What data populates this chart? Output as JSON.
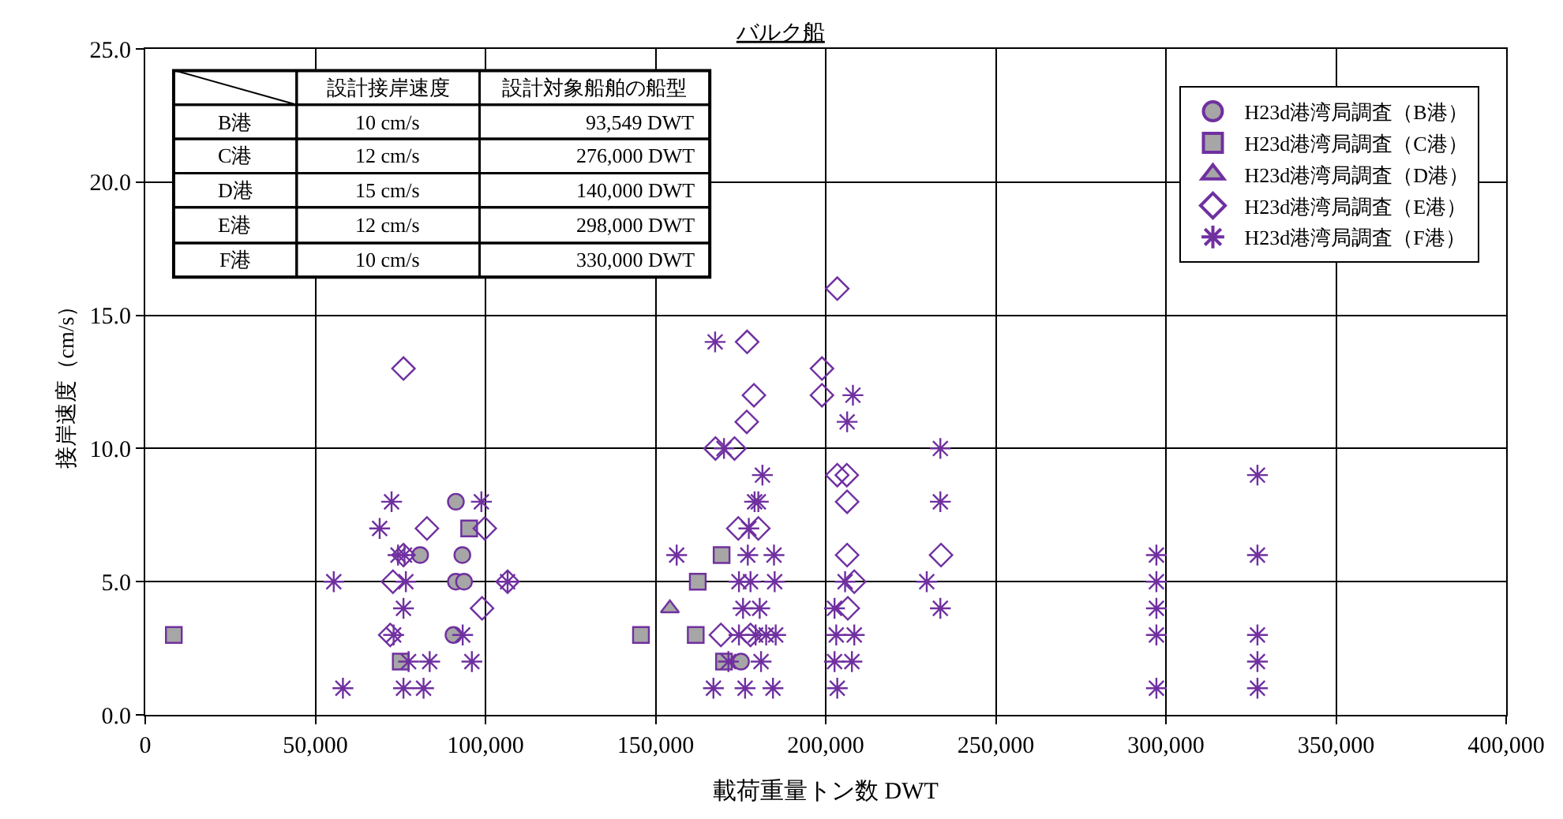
{
  "chart_data": {
    "type": "scatter",
    "title": "バルク船",
    "xlabel": "載荷重量トン数 DWT",
    "ylabel": "接岸速度（cm/s）",
    "xlim": [
      0,
      400000
    ],
    "xticks": [
      {
        "value": 0,
        "label": "0"
      },
      {
        "value": 50000,
        "label": "50,000"
      },
      {
        "value": 100000,
        "label": "100,000"
      },
      {
        "value": 150000,
        "label": "150,000"
      },
      {
        "value": 200000,
        "label": "200,000"
      },
      {
        "value": 250000,
        "label": "250,000"
      },
      {
        "value": 300000,
        "label": "300,000"
      },
      {
        "value": 350000,
        "label": "350,000"
      },
      {
        "value": 400000,
        "label": "400,000"
      }
    ],
    "ylim": [
      0,
      25
    ],
    "yticks": [
      {
        "value": 0,
        "label": "0.0"
      },
      {
        "value": 5,
        "label": "5.0"
      },
      {
        "value": 10,
        "label": "10.0"
      },
      {
        "value": 15,
        "label": "15.0"
      },
      {
        "value": 20,
        "label": "20.0"
      },
      {
        "value": 25,
        "label": "25.0"
      }
    ],
    "grid": true,
    "legend": "top right",
    "annotations": [
      "設計接岸速度",
      "設計対象船舶の船型",
      "B港",
      "10 cm/s",
      "93,549 DWT",
      "C港",
      "12 cm/s",
      "276,000 DWT",
      "D港",
      "15 cm/s",
      "140,000 DWT",
      "E港",
      "12 cm/s",
      "298,000 DWT",
      "F港",
      "10 cm/s",
      "330,000 DWT"
    ],
    "series": [
      {
        "name": "H23d港湾局調査（B港）",
        "color": "#a6a6a6",
        "marker": "circle",
        "x": [
          91300,
          80800,
          93200,
          91300,
          93700,
          90600,
          175100
        ],
        "values": [
          8,
          6,
          6,
          5,
          5,
          3,
          2
        ]
      },
      {
        "name": "H23d港湾局調査（C港）",
        "color": "#a6a6a6",
        "marker": "square",
        "x": [
          8400,
          95200,
          75100,
          169400,
          162400,
          145700,
          161800,
          170100
        ],
        "values": [
          3,
          7,
          2,
          6,
          5,
          3,
          3,
          2
        ]
      },
      {
        "name": "H23d港湾局調査（D港）",
        "color": "#a6a6a6",
        "marker": "triangle",
        "x": [
          154200
        ],
        "values": [
          4
        ]
      },
      {
        "name": "H23d港湾局調査（E港）",
        "color": "#7030a0",
        "marker": "diamond",
        "x": [
          75900,
          82800,
          99800,
          75900,
          72800,
          106500,
          99000,
          72000,
          203400,
          176900,
          198900,
          178900,
          198900,
          176800,
          167600,
          173200,
          203400,
          206200,
          206300,
          174300,
          180200,
          206300,
          233900,
          208400,
          169200,
          177900,
          206500
        ],
        "values": [
          13,
          7,
          7,
          6,
          5,
          5,
          4,
          3,
          16,
          14,
          13,
          12,
          12,
          11,
          10,
          10,
          9,
          9,
          8,
          7,
          7,
          6,
          6,
          5,
          3,
          3,
          4
        ]
      },
      {
        "name": "H23d港湾局調査（F港）",
        "color": "#7030a0",
        "marker": "cross",
        "x": [
          72400,
          98800,
          68900,
          74300,
          76200,
          55400,
          76600,
          106500,
          75900,
          73000,
          93300,
          77400,
          83600,
          96000,
          58100,
          75900,
          81800,
          167500,
          208000,
          206300,
          170100,
          233700,
          181400,
          179100,
          180200,
          233700,
          177400,
          156200,
          177100,
          184800,
          174500,
          177900,
          185000,
          205700,
          229700,
          175700,
          180600,
          202600,
          233700,
          174500,
          179400,
          182500,
          185300,
          203100,
          208400,
          171400,
          181000,
          202600,
          207700,
          167000,
          176300,
          184500,
          203400,
          297200,
          297200,
          297200,
          297200,
          297200,
          326900,
          326900,
          326900,
          326900,
          326900
        ],
        "values": [
          8,
          8,
          7,
          6,
          6,
          5,
          5,
          5,
          4,
          3,
          3,
          2,
          2,
          2,
          1,
          1,
          1,
          14,
          12,
          11,
          10,
          10,
          9,
          8,
          8,
          8,
          7,
          6,
          6,
          6,
          5,
          5,
          5,
          5,
          5,
          4,
          4,
          4,
          4,
          3,
          3,
          3,
          3,
          3,
          3,
          2,
          2,
          2,
          2,
          1,
          1,
          1,
          1,
          6,
          5,
          4,
          3,
          1,
          9,
          6,
          3,
          2,
          1
        ]
      }
    ]
  }
}
